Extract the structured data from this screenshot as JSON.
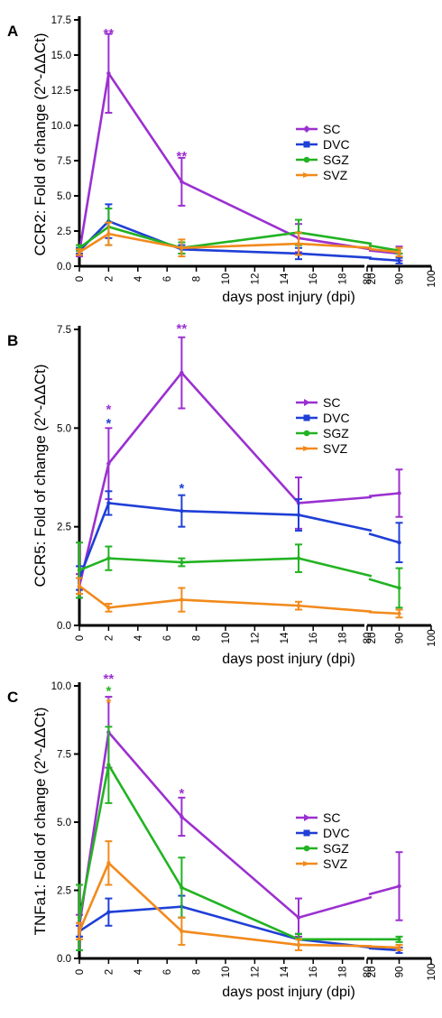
{
  "colors": {
    "SC": "#9b30d0",
    "DVC": "#1f3fd6",
    "SGZ": "#22b322",
    "SVZ": "#f28a1c"
  },
  "chart_data": [
    {
      "type": "line",
      "panel": "A",
      "ylabel": "CCR2: Fold of change (2^-ΔΔCt)",
      "xlabel": "days post injury (dpi)",
      "ylim": [
        0,
        17.5
      ],
      "yticks": [
        "0.0",
        "2.5",
        "5.0",
        "7.5",
        "10.0",
        "12.5",
        "15.0",
        "17.5"
      ],
      "ytick_values": [
        0,
        2.5,
        5,
        7.5,
        10,
        12.5,
        15,
        17.5
      ],
      "x_seg1_ticks": [
        "0",
        "2",
        "4",
        "6",
        "8",
        "10",
        "12",
        "14",
        "16",
        "18",
        "20"
      ],
      "x_seg2_ticks": [
        "80",
        "90",
        "100"
      ],
      "legend": [
        "SC",
        "DVC",
        "SGZ",
        "SVZ"
      ],
      "legend_marker": "diamond",
      "series": [
        {
          "name": "SC",
          "x": [
            0,
            2,
            7,
            15,
            90
          ],
          "y": [
            1.0,
            13.7,
            6.0,
            2.0,
            0.9
          ],
          "err": [
            0.3,
            2.8,
            1.7,
            1.0,
            0.5
          ],
          "tail": [
            20,
            1.2
          ]
        },
        {
          "name": "DVC",
          "x": [
            0,
            2,
            7,
            15,
            90
          ],
          "y": [
            1.1,
            3.2,
            1.2,
            0.9,
            0.4
          ],
          "err": [
            0.2,
            1.2,
            0.3,
            0.4,
            0.2
          ],
          "tail": [
            20,
            0.6
          ]
        },
        {
          "name": "SGZ",
          "x": [
            0,
            2,
            7,
            15,
            90
          ],
          "y": [
            1.3,
            2.8,
            1.3,
            2.4,
            1.1
          ],
          "err": [
            0.2,
            1.3,
            0.4,
            0.9,
            0.2
          ],
          "tail": [
            20,
            1.6
          ]
        },
        {
          "name": "SVZ",
          "x": [
            0,
            2,
            7,
            15,
            90
          ],
          "y": [
            1.0,
            2.3,
            1.3,
            1.6,
            1.0
          ],
          "err": [
            0.2,
            0.8,
            0.6,
            0.8,
            0.3
          ],
          "tail": [
            20,
            1.3
          ]
        }
      ],
      "annotations": [
        {
          "x": 2,
          "y": 16.6,
          "text": "**",
          "series": "SC"
        },
        {
          "x": 7,
          "y": 7.9,
          "text": "**",
          "series": "SC"
        }
      ]
    },
    {
      "type": "line",
      "panel": "B",
      "ylabel": "CCR5: Fold of change (2^-ΔΔCt)",
      "xlabel": "days post injury (dpi)",
      "ylim": [
        0,
        7.5
      ],
      "yticks": [
        "0.0",
        "2.5",
        "5.0",
        "7.5"
      ],
      "ytick_values": [
        0,
        2.5,
        5,
        7.5
      ],
      "x_seg1_ticks": [
        "0",
        "2",
        "4",
        "6",
        "8",
        "10",
        "12",
        "14",
        "16",
        "18",
        "20"
      ],
      "x_seg2_ticks": [
        "80",
        "90",
        "100"
      ],
      "legend": [
        "SC",
        "DVC",
        "SGZ",
        "SVZ"
      ],
      "legend_marker": "triangle",
      "series": [
        {
          "name": "SC",
          "x": [
            0,
            2,
            7,
            15,
            90
          ],
          "y": [
            1.0,
            4.1,
            6.4,
            3.1,
            3.35
          ],
          "err": [
            0.3,
            0.9,
            0.9,
            0.65,
            0.6
          ],
          "tail": [
            20,
            3.25
          ]
        },
        {
          "name": "DVC",
          "x": [
            0,
            2,
            7,
            15,
            90
          ],
          "y": [
            1.2,
            3.1,
            2.9,
            2.8,
            2.1
          ],
          "err": [
            0.3,
            0.3,
            0.4,
            0.4,
            0.5
          ],
          "tail": [
            20,
            2.4
          ]
        },
        {
          "name": "SGZ",
          "x": [
            0,
            2,
            7,
            15,
            90
          ],
          "y": [
            1.4,
            1.7,
            1.6,
            1.7,
            0.95
          ],
          "err": [
            0.7,
            0.3,
            0.1,
            0.35,
            0.5
          ],
          "tail": [
            20,
            1.25
          ]
        },
        {
          "name": "SVZ",
          "x": [
            0,
            2,
            7,
            15,
            90
          ],
          "y": [
            1.0,
            0.45,
            0.65,
            0.5,
            0.3
          ],
          "err": [
            0.2,
            0.1,
            0.3,
            0.1,
            0.1
          ],
          "tail": [
            20,
            0.35
          ]
        }
      ],
      "annotations": [
        {
          "x": 2,
          "y": 5.5,
          "text": "*",
          "series": "SC"
        },
        {
          "x": 2,
          "y": 5.15,
          "text": "*",
          "series": "DVC"
        },
        {
          "x": 7,
          "y": 7.55,
          "text": "**",
          "series": "SC"
        },
        {
          "x": 7,
          "y": 3.5,
          "text": "*",
          "series": "DVC"
        }
      ]
    },
    {
      "type": "line",
      "panel": "C",
      "ylabel": "TNFa1: Fold of change (2^-ΔΔCt)",
      "xlabel": "days post injury (dpi)",
      "ylim": [
        0,
        10
      ],
      "yticks": [
        "0.0",
        "2.5",
        "5.0",
        "7.5",
        "10.0"
      ],
      "ytick_values": [
        0,
        2.5,
        5,
        7.5,
        10
      ],
      "x_seg1_ticks": [
        "0",
        "2",
        "4",
        "6",
        "8",
        "10",
        "12",
        "14",
        "16",
        "18",
        "20"
      ],
      "x_seg2_ticks": [
        "80",
        "90",
        "100"
      ],
      "legend": [
        "SC",
        "DVC",
        "SGZ",
        "SVZ"
      ],
      "legend_marker": "triangle",
      "series": [
        {
          "name": "SC",
          "x": [
            0,
            2,
            7,
            15,
            90
          ],
          "y": [
            1.2,
            8.3,
            5.2,
            1.5,
            2.65
          ],
          "err": [
            0.4,
            1.3,
            0.7,
            0.7,
            1.25
          ],
          "tail": [
            20,
            2.25
          ]
        },
        {
          "name": "DVC",
          "x": [
            0,
            2,
            7,
            15,
            90
          ],
          "y": [
            1.0,
            1.7,
            1.9,
            0.7,
            0.3
          ],
          "err": [
            0.2,
            0.5,
            0.4,
            0.2,
            0.1
          ],
          "tail": [
            20,
            0.4
          ]
        },
        {
          "name": "SGZ",
          "x": [
            0,
            2,
            7,
            15,
            90
          ],
          "y": [
            1.5,
            7.1,
            2.6,
            0.7,
            0.7
          ],
          "err": [
            1.2,
            1.4,
            1.1,
            0.2,
            0.1
          ],
          "tail": [
            20,
            0.7
          ]
        },
        {
          "name": "SVZ",
          "x": [
            0,
            2,
            7,
            15,
            90
          ],
          "y": [
            1.0,
            3.5,
            1.0,
            0.5,
            0.4
          ],
          "err": [
            0.3,
            0.8,
            0.5,
            0.2,
            0.1
          ],
          "tail": [
            20,
            0.45
          ]
        }
      ],
      "annotations": [
        {
          "x": 2,
          "y": 10.3,
          "text": "**",
          "series": "SC"
        },
        {
          "x": 2,
          "y": 9.85,
          "text": "*",
          "series": "SGZ"
        },
        {
          "x": 2,
          "y": 9.4,
          "text": "*",
          "series": "SVZ"
        },
        {
          "x": 7,
          "y": 6.1,
          "text": "*",
          "series": "SC"
        }
      ]
    }
  ]
}
